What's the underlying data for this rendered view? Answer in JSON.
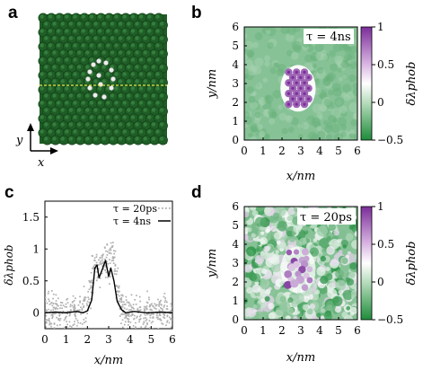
{
  "figure": {
    "panel_labels": [
      "a",
      "b",
      "c",
      "d"
    ],
    "panel_a": {
      "axis_y_label": "y",
      "axis_x_label": "x",
      "colors": {
        "lattice": "#1f5e26",
        "lattice_light": "#3f8a47",
        "marker_line": "#e7e84a",
        "atom": "#eeeeee"
      }
    },
    "panel_b": {
      "annotation": "τ = 4ns",
      "xlabel": "x/nm",
      "ylabel": "y/nm",
      "x_ticks": [
        "0",
        "1",
        "2",
        "3",
        "4",
        "5",
        "6"
      ],
      "y_ticks": [
        "0",
        "1",
        "2",
        "3",
        "4",
        "5",
        "6"
      ]
    },
    "panel_d": {
      "annotation": "τ = 20ps",
      "xlabel": "x/nm",
      "ylabel": "y/nm",
      "x_ticks": [
        "0",
        "1",
        "2",
        "3",
        "4",
        "5",
        "6"
      ],
      "y_ticks": [
        "0",
        "1",
        "2",
        "3",
        "4",
        "5",
        "6"
      ]
    },
    "colorbar": {
      "label": "δλphob",
      "ticks": [
        "1",
        "0.5",
        "0",
        "−0.5"
      ],
      "colors": {
        "top": "#7b2d9a",
        "mid": "#ffffff",
        "bottom": "#1e8c3a"
      }
    }
  },
  "chart_data": [
    {
      "type": "heatmap",
      "panel": "b",
      "xlabel": "x/nm",
      "ylabel": "y/nm",
      "xlim": [
        0,
        6
      ],
      "ylim": [
        0,
        6
      ],
      "clim": [
        -0.5,
        1
      ],
      "background_value": -0.15,
      "features": [
        {
          "kind": "hexagonal-cluster",
          "x_range": [
            2.2,
            3.5
          ],
          "y_range": [
            1.8,
            3.7
          ],
          "peak_value": 0.8,
          "rows": 7
        }
      ]
    },
    {
      "type": "line",
      "panel": "c",
      "xlabel": "x/nm",
      "ylabel": "δλphob",
      "xlim": [
        0,
        6
      ],
      "ylim": [
        -0.25,
        1.75
      ],
      "x_ticks": [
        "0",
        "1",
        "2",
        "3",
        "4",
        "5",
        "6"
      ],
      "y_ticks": [
        "0",
        "0.5",
        "1",
        "1.5"
      ],
      "series": [
        {
          "name": "τ = 20ps",
          "style": "points",
          "color": "#b0b0b0",
          "noise_amplitude": 0.2,
          "x": [
            0.0,
            0.5,
            1.0,
            1.5,
            2.0,
            2.2,
            2.4,
            2.6,
            2.8,
            3.0,
            3.2,
            3.4,
            3.6,
            4.0,
            4.5,
            5.0,
            5.5,
            6.0
          ],
          "y": [
            0.0,
            0.0,
            0.0,
            0.0,
            0.08,
            0.5,
            0.8,
            0.65,
            0.9,
            0.7,
            0.85,
            0.45,
            0.1,
            0.0,
            0.0,
            0.0,
            0.0,
            0.0
          ]
        },
        {
          "name": "τ = 4ns",
          "style": "line",
          "color": "#000000",
          "x": [
            0.0,
            0.5,
            1.0,
            1.5,
            1.8,
            2.0,
            2.2,
            2.35,
            2.45,
            2.55,
            2.7,
            2.85,
            3.0,
            3.1,
            3.25,
            3.4,
            3.6,
            3.8,
            4.2,
            4.8,
            5.5,
            6.0
          ],
          "y": [
            0.0,
            0.01,
            0.0,
            0.02,
            0.0,
            0.03,
            0.2,
            0.7,
            0.75,
            0.55,
            0.68,
            0.82,
            0.57,
            0.7,
            0.5,
            0.18,
            0.05,
            0.0,
            0.02,
            0.0,
            0.01,
            0.0
          ]
        }
      ],
      "legend_position": "top-right"
    },
    {
      "type": "heatmap",
      "panel": "d",
      "xlabel": "x/nm",
      "ylabel": "y/nm",
      "xlim": [
        0,
        6
      ],
      "ylim": [
        0,
        6
      ],
      "clim": [
        -0.5,
        1
      ],
      "background_value": -0.15,
      "features": [
        {
          "kind": "noisy-cluster",
          "x_range": [
            2.2,
            3.5
          ],
          "y_range": [
            1.7,
            3.6
          ],
          "peak_value": 0.7
        }
      ]
    }
  ]
}
